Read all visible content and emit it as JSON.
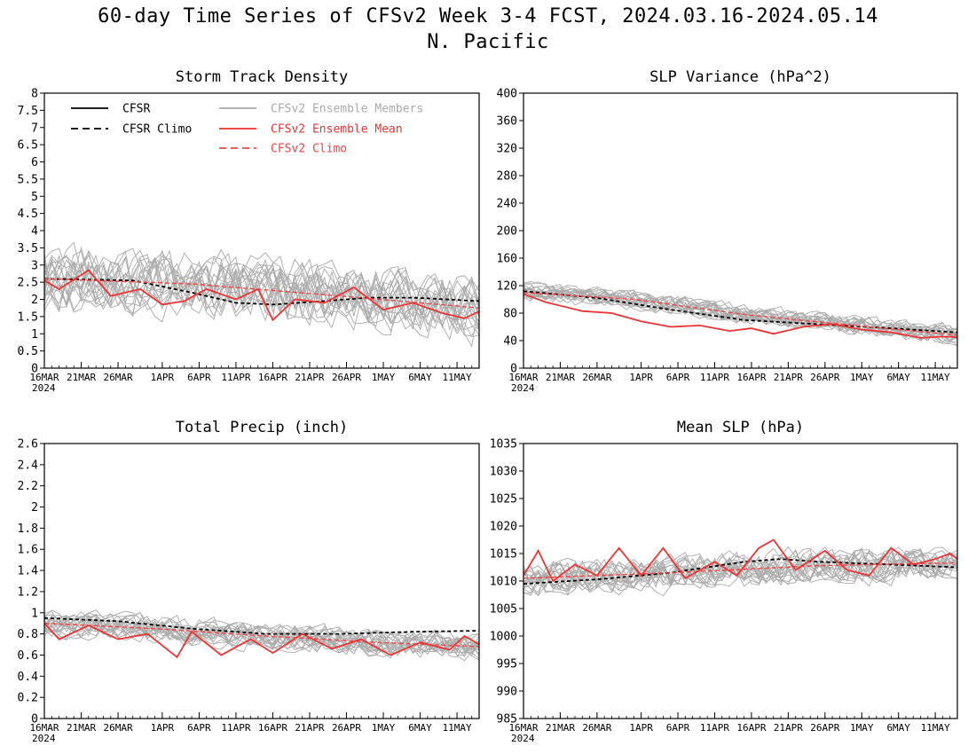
{
  "page": {
    "title": "60-day Time Series of CFSv2 Week 3-4 FCST, 2024.03.16-2024.05.14",
    "subtitle": "N. Pacific"
  },
  "colors": {
    "cfsr": "#000000",
    "members": "#aaaaaa",
    "ens_mean": "#ee3333",
    "cfsv2_climo": "#ee4444",
    "frame": "#000000"
  },
  "legend": [
    {
      "label": "CFSR",
      "style": "solid",
      "color": "#000000"
    },
    {
      "label": "CFSR Climo",
      "style": "dashed",
      "color": "#000000"
    },
    {
      "label": "CFSv2 Ensemble Members",
      "style": "solid",
      "color": "#aaaaaa"
    },
    {
      "label": "CFSv2 Ensemble Mean",
      "style": "solid",
      "color": "#ee3333"
    },
    {
      "label": "CFSv2 Climo",
      "style": "dashed",
      "color": "#ee4444"
    }
  ],
  "chart_data": [
    {
      "type": "line",
      "title": "Storm Track Density",
      "xlim": [
        0,
        59
      ],
      "ylim": [
        0,
        8
      ],
      "yticks": [
        0,
        0.5,
        1,
        1.5,
        2,
        2.5,
        3,
        3.5,
        4,
        4.5,
        5,
        5.5,
        6,
        6.5,
        7,
        7.5,
        8
      ],
      "xticks": [
        {
          "day": 0,
          "label": "16MAR"
        },
        {
          "day": 5,
          "label": "21MAR"
        },
        {
          "day": 10,
          "label": "26MAR"
        },
        {
          "day": 16,
          "label": "1APR"
        },
        {
          "day": 21,
          "label": "6APR"
        },
        {
          "day": 26,
          "label": "11APR"
        },
        {
          "day": 31,
          "label": "16APR"
        },
        {
          "day": 36,
          "label": "21APR"
        },
        {
          "day": 41,
          "label": "26APR"
        },
        {
          "day": 46,
          "label": "1MAY"
        },
        {
          "day": 51,
          "label": "6MAY"
        },
        {
          "day": 56,
          "label": "11MAY"
        }
      ],
      "year_label": "2024",
      "cfsr_climo_knots": [
        [
          0,
          2.6
        ],
        [
          12,
          2.55
        ],
        [
          20,
          2.2
        ],
        [
          26,
          1.9
        ],
        [
          31,
          1.85
        ],
        [
          38,
          1.95
        ],
        [
          44,
          2.05
        ],
        [
          50,
          2.05
        ],
        [
          59,
          1.95
        ]
      ],
      "cfsv2_climo_knots": [
        [
          0,
          2.6
        ],
        [
          20,
          2.45
        ],
        [
          40,
          2.1
        ],
        [
          59,
          1.75
        ]
      ],
      "ens_mean_knots": [
        [
          0,
          2.55
        ],
        [
          2,
          2.3
        ],
        [
          6,
          2.85
        ],
        [
          9,
          2.1
        ],
        [
          13,
          2.3
        ],
        [
          16,
          1.85
        ],
        [
          19,
          1.95
        ],
        [
          22,
          2.3
        ],
        [
          26,
          2.0
        ],
        [
          29,
          2.3
        ],
        [
          31,
          1.4
        ],
        [
          34,
          2.0
        ],
        [
          38,
          1.9
        ],
        [
          42,
          2.35
        ],
        [
          46,
          1.7
        ],
        [
          50,
          1.9
        ],
        [
          54,
          1.6
        ],
        [
          57,
          1.45
        ],
        [
          59,
          1.65
        ]
      ],
      "members": {
        "count": 20,
        "spread": 0.75,
        "seed": 11
      }
    },
    {
      "type": "line",
      "title": "SLP Variance (hPa^2)",
      "xlim": [
        0,
        59
      ],
      "ylim": [
        0,
        400
      ],
      "yticks": [
        0,
        40,
        80,
        120,
        160,
        200,
        240,
        280,
        320,
        360,
        400
      ],
      "xticks": [
        {
          "day": 0,
          "label": "16MAR"
        },
        {
          "day": 5,
          "label": "21MAR"
        },
        {
          "day": 10,
          "label": "26MAR"
        },
        {
          "day": 16,
          "label": "1APR"
        },
        {
          "day": 21,
          "label": "6APR"
        },
        {
          "day": 26,
          "label": "11APR"
        },
        {
          "day": 31,
          "label": "16APR"
        },
        {
          "day": 36,
          "label": "21APR"
        },
        {
          "day": 41,
          "label": "26APR"
        },
        {
          "day": 46,
          "label": "1MAY"
        },
        {
          "day": 51,
          "label": "6MAY"
        },
        {
          "day": 56,
          "label": "11MAY"
        }
      ],
      "year_label": "2024",
      "cfsr_climo_knots": [
        [
          0,
          112
        ],
        [
          10,
          102
        ],
        [
          20,
          85
        ],
        [
          30,
          70
        ],
        [
          40,
          64
        ],
        [
          50,
          58
        ],
        [
          59,
          52
        ]
      ],
      "cfsv2_climo_knots": [
        [
          0,
          110
        ],
        [
          15,
          100
        ],
        [
          30,
          78
        ],
        [
          45,
          62
        ],
        [
          59,
          48
        ]
      ],
      "ens_mean_knots": [
        [
          0,
          108
        ],
        [
          3,
          96
        ],
        [
          8,
          83
        ],
        [
          12,
          80
        ],
        [
          16,
          68
        ],
        [
          20,
          60
        ],
        [
          24,
          62
        ],
        [
          28,
          54
        ],
        [
          31,
          58
        ],
        [
          34,
          50
        ],
        [
          38,
          60
        ],
        [
          42,
          64
        ],
        [
          46,
          56
        ],
        [
          50,
          52
        ],
        [
          54,
          44
        ],
        [
          57,
          46
        ],
        [
          59,
          45
        ]
      ],
      "members": {
        "count": 20,
        "spread": 11,
        "seed": 23
      }
    },
    {
      "type": "line",
      "title": "Total Precip (inch)",
      "xlim": [
        0,
        59
      ],
      "ylim": [
        0,
        2.6
      ],
      "yticks": [
        0,
        0.2,
        0.4,
        0.6,
        0.8,
        1,
        1.2,
        1.4,
        1.6,
        1.8,
        2,
        2.2,
        2.4,
        2.6
      ],
      "xticks": [
        {
          "day": 0,
          "label": "16MAR"
        },
        {
          "day": 5,
          "label": "21MAR"
        },
        {
          "day": 10,
          "label": "26MAR"
        },
        {
          "day": 16,
          "label": "1APR"
        },
        {
          "day": 21,
          "label": "6APR"
        },
        {
          "day": 26,
          "label": "11APR"
        },
        {
          "day": 31,
          "label": "16APR"
        },
        {
          "day": 36,
          "label": "21APR"
        },
        {
          "day": 41,
          "label": "26APR"
        },
        {
          "day": 46,
          "label": "1MAY"
        },
        {
          "day": 51,
          "label": "6MAY"
        },
        {
          "day": 56,
          "label": "11MAY"
        }
      ],
      "year_label": "2024",
      "cfsr_climo_knots": [
        [
          0,
          0.95
        ],
        [
          10,
          0.92
        ],
        [
          20,
          0.85
        ],
        [
          30,
          0.8
        ],
        [
          40,
          0.8
        ],
        [
          50,
          0.82
        ],
        [
          59,
          0.83
        ]
      ],
      "cfsv2_climo_knots": [
        [
          0,
          0.9
        ],
        [
          15,
          0.85
        ],
        [
          30,
          0.78
        ],
        [
          45,
          0.72
        ],
        [
          59,
          0.68
        ]
      ],
      "ens_mean_knots": [
        [
          0,
          0.9
        ],
        [
          2,
          0.75
        ],
        [
          6,
          0.88
        ],
        [
          10,
          0.75
        ],
        [
          14,
          0.8
        ],
        [
          18,
          0.58
        ],
        [
          20,
          0.82
        ],
        [
          24,
          0.6
        ],
        [
          28,
          0.75
        ],
        [
          31,
          0.62
        ],
        [
          35,
          0.8
        ],
        [
          39,
          0.66
        ],
        [
          43,
          0.75
        ],
        [
          47,
          0.6
        ],
        [
          51,
          0.72
        ],
        [
          55,
          0.65
        ],
        [
          57,
          0.78
        ],
        [
          59,
          0.7
        ]
      ],
      "members": {
        "count": 20,
        "spread": 0.1,
        "seed": 37
      }
    },
    {
      "type": "line",
      "title": "Mean SLP (hPa)",
      "xlim": [
        0,
        59
      ],
      "ylim": [
        985,
        1035
      ],
      "yticks": [
        985,
        990,
        995,
        1000,
        1005,
        1010,
        1015,
        1020,
        1025,
        1030,
        1035
      ],
      "xticks": [
        {
          "day": 0,
          "label": "16MAR"
        },
        {
          "day": 5,
          "label": "21MAR"
        },
        {
          "day": 10,
          "label": "26MAR"
        },
        {
          "day": 16,
          "label": "1APR"
        },
        {
          "day": 21,
          "label": "6APR"
        },
        {
          "day": 26,
          "label": "11APR"
        },
        {
          "day": 31,
          "label": "16APR"
        },
        {
          "day": 36,
          "label": "21APR"
        },
        {
          "day": 41,
          "label": "26APR"
        },
        {
          "day": 46,
          "label": "1MAY"
        },
        {
          "day": 51,
          "label": "6MAY"
        },
        {
          "day": 56,
          "label": "11MAY"
        }
      ],
      "year_label": "2024",
      "cfsr_climo_knots": [
        [
          0,
          1009.5
        ],
        [
          10,
          1010.3
        ],
        [
          20,
          1011.5
        ],
        [
          30,
          1013.5
        ],
        [
          35,
          1014
        ],
        [
          40,
          1013.5
        ],
        [
          50,
          1013
        ],
        [
          59,
          1012.5
        ]
      ],
      "cfsv2_climo_knots": [
        [
          0,
          1010.5
        ],
        [
          20,
          1011.5
        ],
        [
          40,
          1012.8
        ],
        [
          59,
          1013.3
        ]
      ],
      "ens_mean_knots": [
        [
          0,
          1011
        ],
        [
          2,
          1015.5
        ],
        [
          4,
          1010
        ],
        [
          7,
          1013
        ],
        [
          10,
          1011
        ],
        [
          13,
          1016
        ],
        [
          16,
          1011
        ],
        [
          19,
          1016
        ],
        [
          22,
          1010.5
        ],
        [
          26,
          1013.5
        ],
        [
          29,
          1011
        ],
        [
          32,
          1016
        ],
        [
          34,
          1017.5
        ],
        [
          37,
          1012
        ],
        [
          41,
          1015.5
        ],
        [
          44,
          1012
        ],
        [
          47,
          1011
        ],
        [
          50,
          1016
        ],
        [
          53,
          1013
        ],
        [
          56,
          1014
        ],
        [
          58,
          1015
        ],
        [
          59,
          1014
        ]
      ],
      "members": {
        "count": 20,
        "spread": 2.6,
        "seed": 53
      }
    }
  ]
}
